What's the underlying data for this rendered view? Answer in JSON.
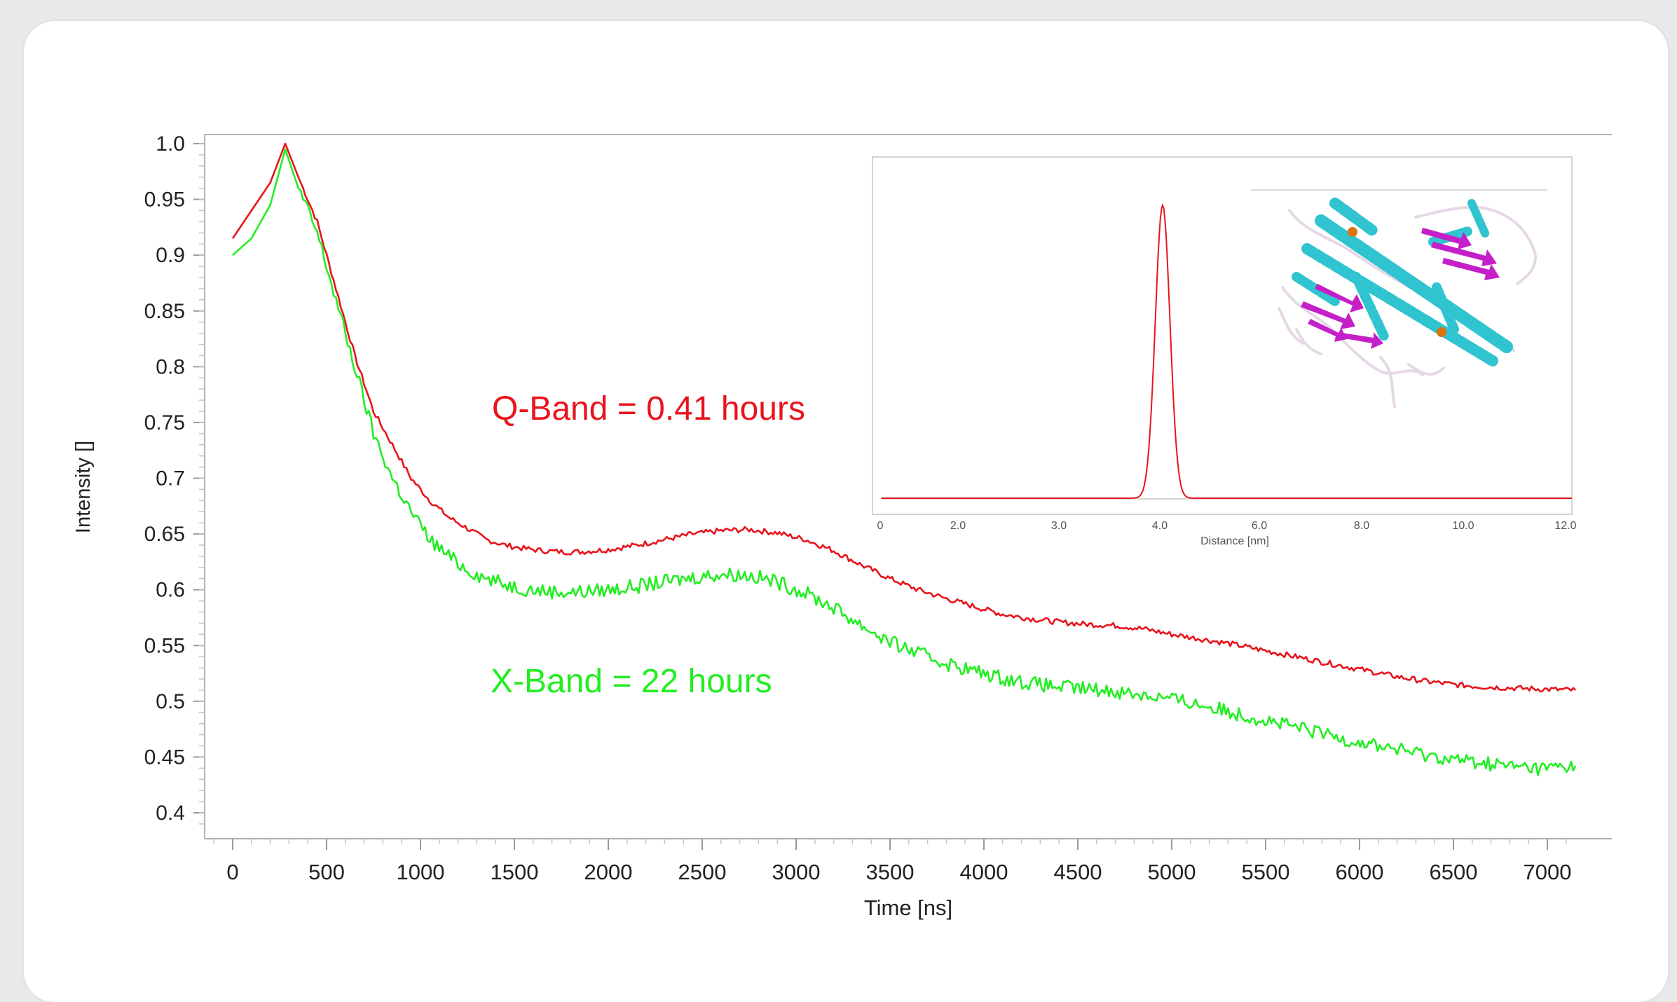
{
  "colors": {
    "q_band": "#e8141c",
    "x_band": "#22ee22",
    "inset_line": "#e8141c",
    "helix": "#2fc4cf",
    "sheet": "#c41fc8",
    "loop": "#e6d8e6",
    "metal": "#d9740f"
  },
  "annotations": {
    "q_band": "Q-Band = 0.41 hours",
    "x_band": "X-Band = 22 hours"
  },
  "inset": {
    "picture": "protein-ribbon-structure-icon",
    "chart_data": {
      "type": "line",
      "xlabel": "Distance [nm]",
      "ylabel": "",
      "x_tick_labels": [
        "0",
        "2.0",
        "3.0",
        "4.0",
        "6.0",
        "8.0",
        "10.0",
        "12.0"
      ],
      "xlim": [
        0,
        12
      ],
      "peak": {
        "center": 4.9,
        "width": 0.18
      },
      "series": [
        {
          "color": "#e8141c"
        }
      ]
    }
  },
  "chart_data": {
    "type": "line",
    "title": "",
    "xlabel": "Time [ns]",
    "ylabel": "Intensity []",
    "xlim": [
      -150,
      7200
    ],
    "ylim": [
      0.38,
      1.01
    ],
    "x_ticks": [
      0,
      500,
      1000,
      1500,
      2000,
      2500,
      3000,
      3500,
      4000,
      4500,
      5000,
      5500,
      6000,
      6500,
      7000
    ],
    "y_ticks": [
      1.0,
      0.95,
      0.9,
      0.85,
      0.8,
      0.75,
      0.7,
      0.65,
      0.6,
      0.55,
      0.5,
      0.45,
      0.4
    ],
    "y_tick_labels": [
      "1.0",
      "0.95",
      "0.9",
      "0.85",
      "0.8",
      "0.75",
      "0.7",
      "0.65",
      "0.6",
      "0.55",
      "0.5",
      "0.45",
      "0.4"
    ],
    "series": [
      {
        "color": "#e8141c",
        "x": [
          0,
          100,
          200,
          280,
          350,
          450,
          550,
          650,
          750,
          850,
          950,
          1050,
          1150,
          1250,
          1350,
          1450,
          1550,
          1650,
          1750,
          1850,
          2000,
          2150,
          2300,
          2450,
          2600,
          2750,
          2900,
          3050,
          3200,
          3350,
          3500,
          3650,
          3800,
          3950,
          4100,
          4250,
          4400,
          4550,
          4700,
          4850,
          5000,
          5150,
          5300,
          5450,
          5600,
          5750,
          5900,
          6050,
          6200,
          6350,
          6500,
          6650,
          6800,
          6950,
          7150
        ],
        "y": [
          0.915,
          0.94,
          0.965,
          1.0,
          0.97,
          0.93,
          0.87,
          0.81,
          0.76,
          0.73,
          0.7,
          0.68,
          0.665,
          0.655,
          0.645,
          0.64,
          0.637,
          0.635,
          0.634,
          0.634,
          0.636,
          0.64,
          0.645,
          0.65,
          0.653,
          0.654,
          0.651,
          0.645,
          0.635,
          0.622,
          0.61,
          0.6,
          0.592,
          0.585,
          0.578,
          0.574,
          0.571,
          0.569,
          0.568,
          0.565,
          0.56,
          0.556,
          0.552,
          0.547,
          0.542,
          0.537,
          0.532,
          0.527,
          0.522,
          0.518,
          0.515,
          0.513,
          0.512,
          0.511,
          0.51
        ]
      },
      {
        "color": "#22ee22",
        "x": [
          0,
          100,
          200,
          280,
          350,
          450,
          550,
          650,
          750,
          850,
          950,
          1050,
          1150,
          1250,
          1350,
          1450,
          1550,
          1650,
          1750,
          1850,
          2000,
          2150,
          2300,
          2450,
          2600,
          2750,
          2900,
          3050,
          3200,
          3350,
          3500,
          3650,
          3800,
          3950,
          4100,
          4250,
          4400,
          4550,
          4700,
          4850,
          5000,
          5150,
          5300,
          5450,
          5600,
          5750,
          5900,
          6050,
          6200,
          6350,
          6500,
          6650,
          6800,
          6950,
          7150
        ],
        "y": [
          0.9,
          0.915,
          0.945,
          0.995,
          0.96,
          0.92,
          0.86,
          0.8,
          0.74,
          0.7,
          0.67,
          0.645,
          0.63,
          0.618,
          0.61,
          0.605,
          0.601,
          0.599,
          0.598,
          0.598,
          0.6,
          0.603,
          0.607,
          0.611,
          0.614,
          0.613,
          0.607,
          0.597,
          0.584,
          0.568,
          0.553,
          0.543,
          0.534,
          0.527,
          0.521,
          0.516,
          0.513,
          0.511,
          0.509,
          0.506,
          0.502,
          0.497,
          0.491,
          0.485,
          0.479,
          0.473,
          0.467,
          0.462,
          0.457,
          0.452,
          0.448,
          0.445,
          0.442,
          0.44,
          0.442
        ]
      }
    ]
  }
}
